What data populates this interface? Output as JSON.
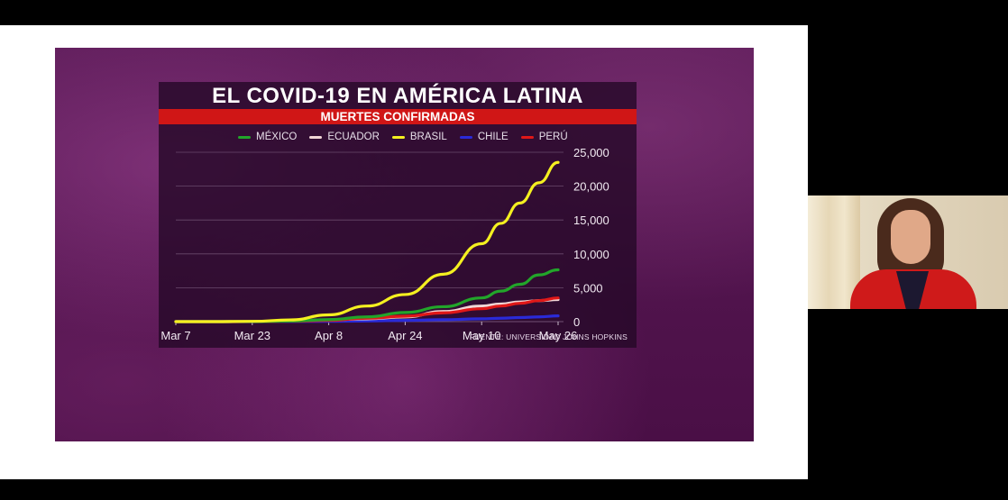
{
  "slide": {
    "title": "EL COVID-19 EN AMÉRICA LATINA",
    "subtitle": "MUERTES CONFIRMADAS",
    "source": "FUENTE: UNIVERSIDAD JOHNS HOPKINS"
  },
  "colors": {
    "mexico": "#22a52a",
    "ecuador": "#f0d6d6",
    "brasil": "#f4f020",
    "chile": "#2a2ad8",
    "peru": "#e01818",
    "subtitle_bar": "#d01616"
  },
  "chart_data": {
    "type": "line",
    "title": "EL COVID-19 EN AMÉRICA LATINA",
    "subtitle": "MUERTES CONFIRMADAS",
    "x_tick_labels": [
      "Mar 7",
      "Mar 23",
      "Apr 8",
      "Apr 24",
      "May 10",
      "May 26"
    ],
    "y_tick_labels": [
      "0",
      "5,000",
      "10,000",
      "15,000",
      "20,000",
      "25,000"
    ],
    "y_ticks": [
      0,
      5000,
      10000,
      15000,
      20000,
      25000
    ],
    "ylim": [
      0,
      25000
    ],
    "grid": true,
    "legend_position": "top",
    "y_axis_side": "right",
    "x": [
      "Mar 7",
      "Mar 15",
      "Mar 23",
      "Mar 31",
      "Apr 8",
      "Apr 16",
      "Apr 24",
      "May 2",
      "May 10",
      "May 14",
      "May 18",
      "May 22",
      "May 26"
    ],
    "series": [
      {
        "name": "MÉXICO",
        "key": "mexico",
        "values": [
          0,
          0,
          10,
          80,
          300,
          700,
          1350,
          2200,
          3500,
          4500,
          5500,
          6900,
          7650
        ]
      },
      {
        "name": "ECUADOR",
        "key": "ecuador",
        "values": [
          0,
          0,
          10,
          100,
          260,
          420,
          700,
          1500,
          2300,
          2600,
          2900,
          3100,
          3250
        ]
      },
      {
        "name": "BRASIL",
        "key": "brasil",
        "values": [
          0,
          0,
          40,
          250,
          1000,
          2300,
          4000,
          7000,
          11500,
          14500,
          17500,
          20500,
          23500
        ]
      },
      {
        "name": "CHILE",
        "key": "chile",
        "values": [
          0,
          0,
          0,
          10,
          40,
          100,
          180,
          280,
          420,
          500,
          600,
          700,
          850
        ]
      },
      {
        "name": "PERÚ",
        "key": "peru",
        "values": [
          0,
          0,
          5,
          60,
          180,
          500,
          800,
          1300,
          1900,
          2300,
          2700,
          3100,
          3500
        ]
      }
    ]
  },
  "webcam": {
    "icon": "presenter-video-icon"
  }
}
